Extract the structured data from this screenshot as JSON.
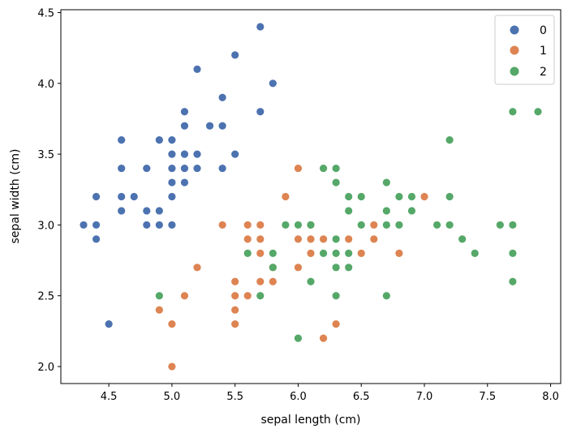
{
  "chart_data": {
    "type": "scatter",
    "title": "",
    "xlabel": "sepal length (cm)",
    "ylabel": "sepal width (cm)",
    "xlim": [
      4.12,
      8.08
    ],
    "ylim": [
      1.88,
      4.52
    ],
    "xticks": [
      "4.5",
      "5.0",
      "5.5",
      "6.0",
      "6.5",
      "7.0",
      "7.5",
      "8.0"
    ],
    "yticks": [
      "2.0",
      "2.5",
      "3.0",
      "3.5",
      "4.0",
      "4.5"
    ],
    "grid": false,
    "legend_position": "top-right",
    "series": [
      {
        "name": "0",
        "color": "#4c72b0",
        "points": [
          [
            5.7,
            4.4
          ],
          [
            5.5,
            4.2
          ],
          [
            5.2,
            4.1
          ],
          [
            5.8,
            4.0
          ],
          [
            5.4,
            3.9
          ],
          [
            5.1,
            3.8
          ],
          [
            5.7,
            3.8
          ],
          [
            5.1,
            3.7
          ],
          [
            5.3,
            3.7
          ],
          [
            5.4,
            3.7
          ],
          [
            4.6,
            3.6
          ],
          [
            4.9,
            3.6
          ],
          [
            5.0,
            3.6
          ],
          [
            5.0,
            3.5
          ],
          [
            5.1,
            3.5
          ],
          [
            5.2,
            3.5
          ],
          [
            5.5,
            3.5
          ],
          [
            4.6,
            3.4
          ],
          [
            4.8,
            3.4
          ],
          [
            5.0,
            3.4
          ],
          [
            5.1,
            3.4
          ],
          [
            5.2,
            3.4
          ],
          [
            5.4,
            3.4
          ],
          [
            5.0,
            3.3
          ],
          [
            5.1,
            3.3
          ],
          [
            4.4,
            3.2
          ],
          [
            4.6,
            3.2
          ],
          [
            4.7,
            3.2
          ],
          [
            5.0,
            3.2
          ],
          [
            4.6,
            3.1
          ],
          [
            4.8,
            3.1
          ],
          [
            4.9,
            3.1
          ],
          [
            4.3,
            3.0
          ],
          [
            4.4,
            3.0
          ],
          [
            4.8,
            3.0
          ],
          [
            4.9,
            3.0
          ],
          [
            5.0,
            3.0
          ],
          [
            4.4,
            2.9
          ],
          [
            4.5,
            2.3
          ]
        ]
      },
      {
        "name": "1",
        "color": "#dd8452",
        "points": [
          [
            6.0,
            3.4
          ],
          [
            5.9,
            3.2
          ],
          [
            7.0,
            3.2
          ],
          [
            5.4,
            3.0
          ],
          [
            5.6,
            3.0
          ],
          [
            5.7,
            3.0
          ],
          [
            6.1,
            3.0
          ],
          [
            6.6,
            3.0
          ],
          [
            5.6,
            2.9
          ],
          [
            5.7,
            2.9
          ],
          [
            6.0,
            2.9
          ],
          [
            6.1,
            2.9
          ],
          [
            6.2,
            2.9
          ],
          [
            6.4,
            2.9
          ],
          [
            6.6,
            2.9
          ],
          [
            5.7,
            2.8
          ],
          [
            6.1,
            2.8
          ],
          [
            6.5,
            2.8
          ],
          [
            6.8,
            2.8
          ],
          [
            5.2,
            2.7
          ],
          [
            5.8,
            2.7
          ],
          [
            6.0,
            2.7
          ],
          [
            5.5,
            2.6
          ],
          [
            5.7,
            2.6
          ],
          [
            5.8,
            2.6
          ],
          [
            5.1,
            2.5
          ],
          [
            5.5,
            2.5
          ],
          [
            5.6,
            2.5
          ],
          [
            4.9,
            2.4
          ],
          [
            5.5,
            2.4
          ],
          [
            5.0,
            2.3
          ],
          [
            5.5,
            2.3
          ],
          [
            6.3,
            2.3
          ],
          [
            6.2,
            2.2
          ],
          [
            5.0,
            2.0
          ]
        ]
      },
      {
        "name": "2",
        "color": "#55a868",
        "points": [
          [
            7.7,
            3.8
          ],
          [
            7.9,
            3.8
          ],
          [
            7.2,
            3.6
          ],
          [
            6.2,
            3.4
          ],
          [
            6.3,
            3.4
          ],
          [
            6.3,
            3.3
          ],
          [
            6.7,
            3.3
          ],
          [
            6.4,
            3.2
          ],
          [
            6.5,
            3.2
          ],
          [
            6.8,
            3.2
          ],
          [
            6.9,
            3.2
          ],
          [
            7.2,
            3.2
          ],
          [
            6.4,
            3.1
          ],
          [
            6.7,
            3.1
          ],
          [
            6.9,
            3.1
          ],
          [
            5.9,
            3.0
          ],
          [
            6.0,
            3.0
          ],
          [
            6.1,
            3.0
          ],
          [
            6.5,
            3.0
          ],
          [
            6.7,
            3.0
          ],
          [
            6.8,
            3.0
          ],
          [
            7.1,
            3.0
          ],
          [
            7.2,
            3.0
          ],
          [
            7.6,
            3.0
          ],
          [
            7.7,
            3.0
          ],
          [
            6.3,
            2.9
          ],
          [
            7.3,
            2.9
          ],
          [
            5.6,
            2.8
          ],
          [
            5.8,
            2.8
          ],
          [
            6.2,
            2.8
          ],
          [
            6.3,
            2.8
          ],
          [
            6.4,
            2.8
          ],
          [
            7.4,
            2.8
          ],
          [
            7.7,
            2.8
          ],
          [
            5.8,
            2.7
          ],
          [
            6.3,
            2.7
          ],
          [
            6.4,
            2.7
          ],
          [
            6.1,
            2.6
          ],
          [
            7.7,
            2.6
          ],
          [
            4.9,
            2.5
          ],
          [
            5.7,
            2.5
          ],
          [
            6.3,
            2.5
          ],
          [
            6.7,
            2.5
          ],
          [
            6.0,
            2.2
          ]
        ]
      }
    ]
  }
}
